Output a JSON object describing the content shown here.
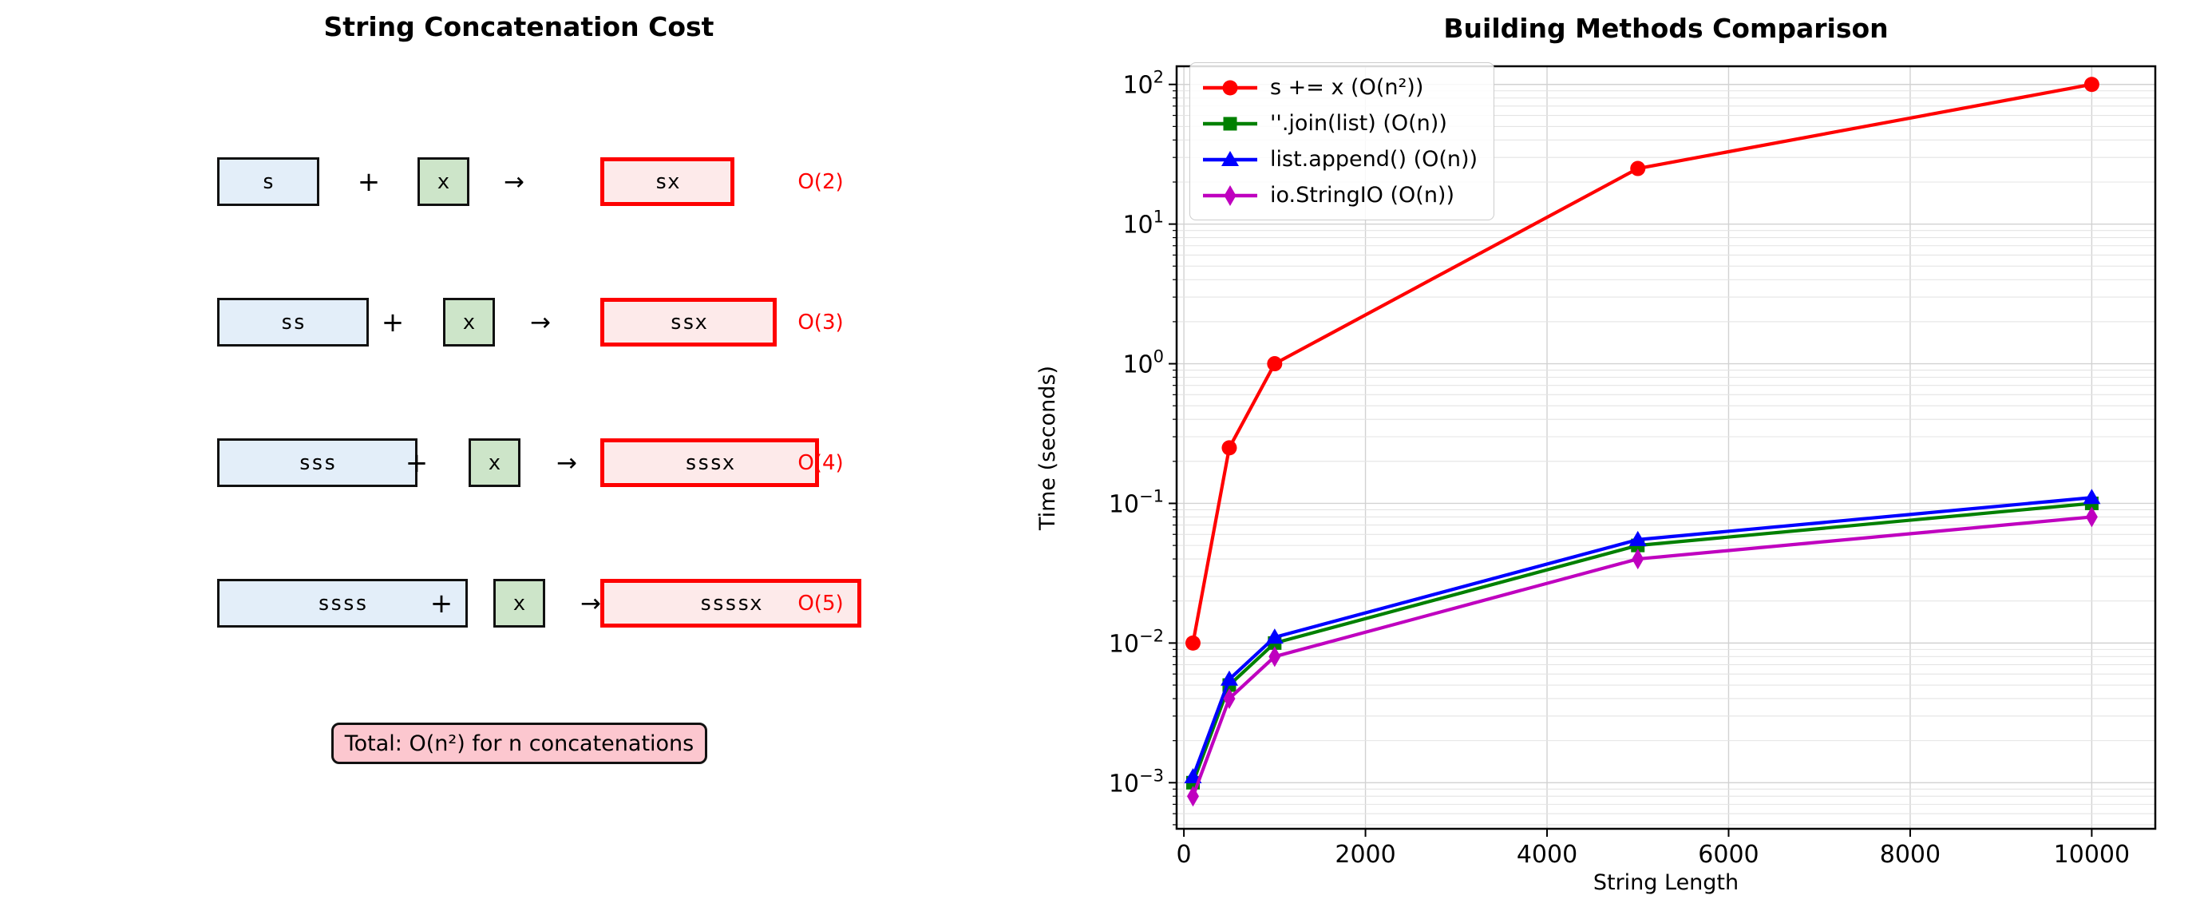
{
  "diagram": {
    "title": "String Concatenation Cost",
    "plus": "+",
    "arrow": "→",
    "rows": [
      {
        "left": "s",
        "add": "x",
        "result": "sx",
        "cost": "O(2)"
      },
      {
        "left": "ss",
        "add": "x",
        "result": "ssx",
        "cost": "O(3)"
      },
      {
        "left": "sss",
        "add": "x",
        "result": "sssx",
        "cost": "O(4)"
      },
      {
        "left": "ssss",
        "add": "x",
        "result": "ssssx",
        "cost": "O(5)"
      }
    ],
    "total": "Total: O(n²) for n concatenations",
    "colors": {
      "source_fill": "#e3eef9",
      "append_fill": "#cde5c9",
      "result_fill": "#fdeaea",
      "result_border": "#fe0000",
      "cost_text": "#fe0000",
      "total_fill": "#fcc7cf"
    }
  },
  "chart_data": {
    "type": "line",
    "title": "Building Methods Comparison",
    "xlabel": "String Length",
    "ylabel": "Time (seconds)",
    "x_scale": "linear",
    "y_scale": "log",
    "grid": true,
    "legend_position": "upper left",
    "xlim": [
      -80,
      10700
    ],
    "ylim_exp": [
      -3.33,
      2.13
    ],
    "x_ticks": [
      0,
      2000,
      4000,
      6000,
      8000,
      10000
    ],
    "y_tick_exponents": [
      2,
      1,
      0,
      -1,
      -2,
      -3
    ],
    "x": [
      100,
      500,
      1000,
      5000,
      10000
    ],
    "series": [
      {
        "name": "s += x (O(n²))",
        "color": "#ff0000",
        "marker": "circle",
        "values": [
          0.01,
          0.25,
          1.0,
          25,
          100
        ]
      },
      {
        "name": "''.join(list) (O(n))",
        "color": "#008000",
        "marker": "square",
        "values": [
          0.001,
          0.005,
          0.01,
          0.05,
          0.1
        ]
      },
      {
        "name": "list.append() (O(n))",
        "color": "#0000ff",
        "marker": "triangle",
        "values": [
          0.0011,
          0.0055,
          0.011,
          0.055,
          0.11
        ]
      },
      {
        "name": "io.StringIO (O(n))",
        "color": "#bf00bf",
        "marker": "diamond",
        "values": [
          0.0008,
          0.004,
          0.008,
          0.04,
          0.08
        ]
      }
    ]
  }
}
